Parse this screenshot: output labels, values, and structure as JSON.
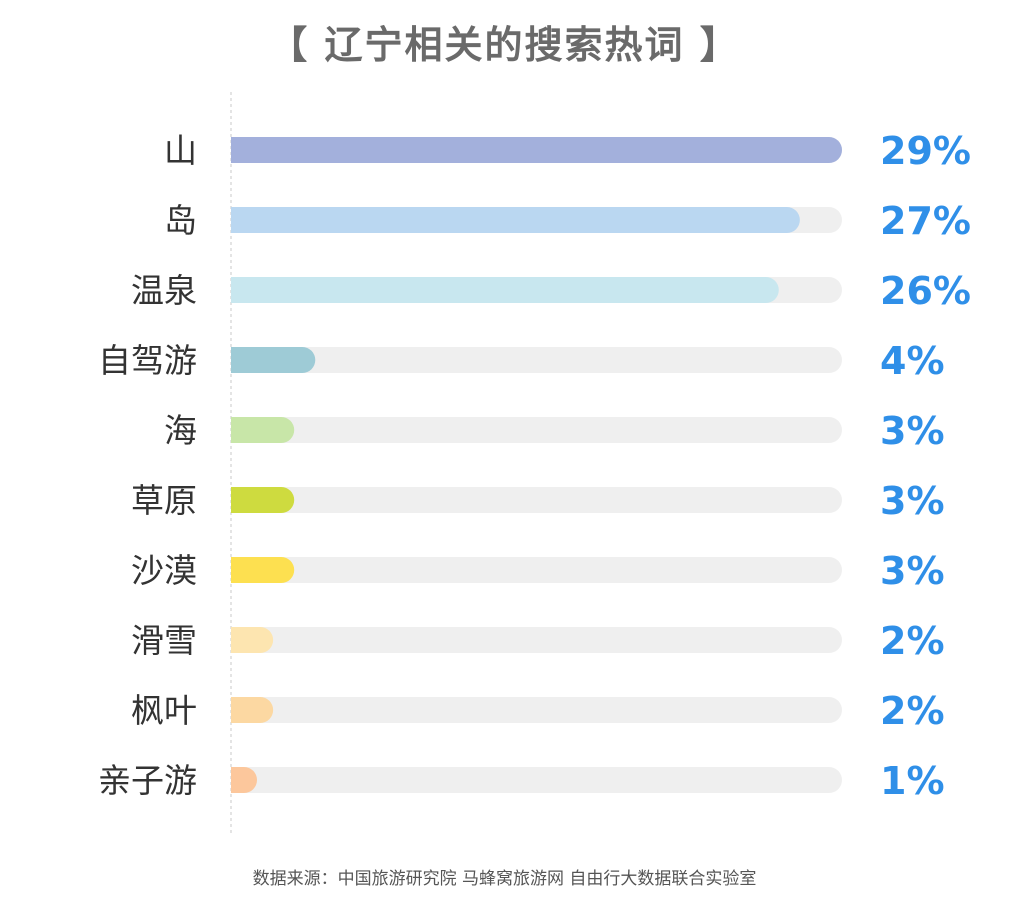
{
  "chart_data": {
    "type": "bar",
    "orientation": "horizontal",
    "title": "【 辽宁相关的搜索热词 】",
    "categories": [
      "山",
      "岛",
      "温泉",
      "自驾游",
      "海",
      "草原",
      "沙漠",
      "滑雪",
      "枫叶",
      "亲子游"
    ],
    "values": [
      29,
      27,
      26,
      4,
      3,
      3,
      3,
      2,
      2,
      1
    ],
    "value_labels": [
      "29%",
      "27%",
      "26%",
      "4%",
      "3%",
      "3%",
      "3%",
      "2%",
      "2%",
      "1%"
    ],
    "bar_colors": [
      "#a3b0dc",
      "#bad7f1",
      "#c8e7ef",
      "#9ecbd6",
      "#c8e6a8",
      "#cedb3f",
      "#fde050",
      "#fde5b0",
      "#fcd8a2",
      "#fcc79c"
    ],
    "track_color": "#efefef",
    "value_color": "#2f8fe8",
    "xlim": [
      0,
      29
    ],
    "grid": false,
    "legend": "none"
  },
  "source": "数据来源：中国旅游研究院 马蜂窝旅游网 自由行大数据联合实验室"
}
